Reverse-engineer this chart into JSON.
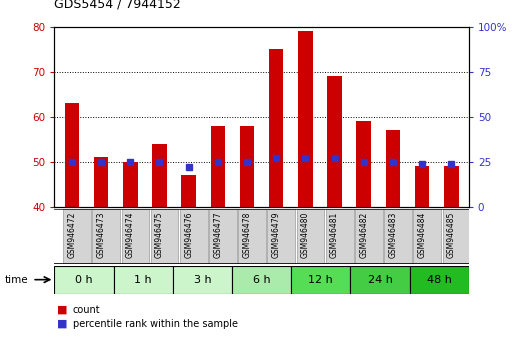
{
  "title": "GDS5454 / 7944152",
  "samples": [
    "GSM946472",
    "GSM946473",
    "GSM946474",
    "GSM946475",
    "GSM946476",
    "GSM946477",
    "GSM946478",
    "GSM946479",
    "GSM946480",
    "GSM946481",
    "GSM946482",
    "GSM946483",
    "GSM946484",
    "GSM946485"
  ],
  "count_values": [
    63,
    51,
    50,
    54,
    47,
    58,
    58,
    75,
    79,
    69,
    59,
    57,
    49,
    49
  ],
  "percentile_values": [
    25,
    25,
    25,
    25,
    22,
    25,
    25,
    27,
    27,
    27,
    25,
    25,
    24,
    24
  ],
  "time_groups": [
    {
      "label": "0 h",
      "start": 0,
      "end": 2
    },
    {
      "label": "1 h",
      "start": 2,
      "end": 4
    },
    {
      "label": "3 h",
      "start": 4,
      "end": 6
    },
    {
      "label": "6 h",
      "start": 6,
      "end": 8
    },
    {
      "label": "12 h",
      "start": 8,
      "end": 10
    },
    {
      "label": "24 h",
      "start": 10,
      "end": 12
    },
    {
      "label": "48 h",
      "start": 12,
      "end": 14
    }
  ],
  "time_group_colors": [
    "#ccf5cc",
    "#ccf5cc",
    "#ccf5cc",
    "#aaeaaa",
    "#55dd55",
    "#44cc44",
    "#22bb22"
  ],
  "ylim_left": [
    40,
    80
  ],
  "ylim_right": [
    0,
    100
  ],
  "yticks_left": [
    40,
    50,
    60,
    70,
    80
  ],
  "yticks_right": [
    0,
    25,
    50,
    75,
    100
  ],
  "bar_color_red": "#cc0000",
  "bar_color_blue": "#3333cc",
  "bar_width": 0.5,
  "bg_color": "#ffffff",
  "label_count": "count",
  "label_percentile": "percentile rank within the sample",
  "time_label": "time",
  "sample_box_color": "#d4d4d4",
  "sample_box_edge": "#999999",
  "grid_color": "#000000",
  "title_fontsize": 9,
  "tick_fontsize": 7.5,
  "sample_fontsize": 5.5,
  "time_fontsize": 8
}
